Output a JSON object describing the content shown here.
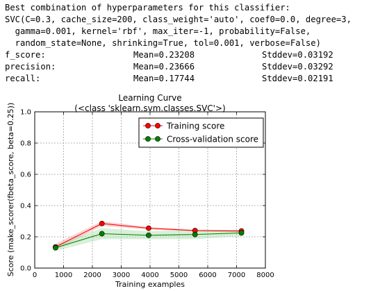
{
  "output": {
    "header_lines": [
      "Best combination of hyperparameters for this classifier:",
      "SVC(C=0.3, cache_size=200, class_weight='auto', coef0=0.0, degree=3,",
      "  gamma=0.001, kernel='rbf', max_iter=-1, probability=False,",
      "  random_state=None, shrinking=True, tol=0.001, verbose=False)"
    ],
    "metrics": [
      {
        "name": "f_score:",
        "mean": "Mean=0.23208",
        "std": "Stddev=0.03192"
      },
      {
        "name": "precision:",
        "mean": "Mean=0.23666",
        "std": "Stddev=0.03292"
      },
      {
        "name": "recall:",
        "mean": "Mean=0.17744",
        "std": "Stddev=0.02191"
      }
    ]
  },
  "chart_data": {
    "type": "line",
    "title": "Learning Curve",
    "subtitle": "(<class 'sklearn.svm.classes.SVC'>)",
    "xlabel": "Training examples",
    "ylabel": "Score (make_scorer(fbeta_score, beta=0.25))",
    "xlim": [
      0,
      8000
    ],
    "ylim": [
      0.0,
      1.0
    ],
    "xticks": [
      0,
      1000,
      2000,
      3000,
      4000,
      5000,
      6000,
      7000,
      8000
    ],
    "yticks": [
      0.0,
      0.2,
      0.4,
      0.6,
      0.8,
      1.0
    ],
    "xtick_labels": [
      "0",
      "1000",
      "2000",
      "3000",
      "4000",
      "5000",
      "6000",
      "7000",
      "8000"
    ],
    "ytick_labels": [
      "0.0",
      "0.2",
      "0.4",
      "0.6",
      "0.8",
      "1.0"
    ],
    "grid": true,
    "legend_position": "top-right",
    "x": [
      720,
      2330,
      3950,
      5560,
      7170
    ],
    "series": [
      {
        "name": "Training score",
        "color": "#ff0000",
        "band_color": "#f4a0a0",
        "values": [
          0.135,
          0.285,
          0.255,
          0.24,
          0.237
        ],
        "std": [
          0.02,
          0.015,
          0.008,
          0.006,
          0.006
        ]
      },
      {
        "name": "Cross-validation score",
        "color": "#008000",
        "band_color": "#a8dca8",
        "values": [
          0.13,
          0.22,
          0.21,
          0.215,
          0.225
        ],
        "std": [
          0.02,
          0.035,
          0.025,
          0.03,
          0.02
        ]
      }
    ]
  }
}
